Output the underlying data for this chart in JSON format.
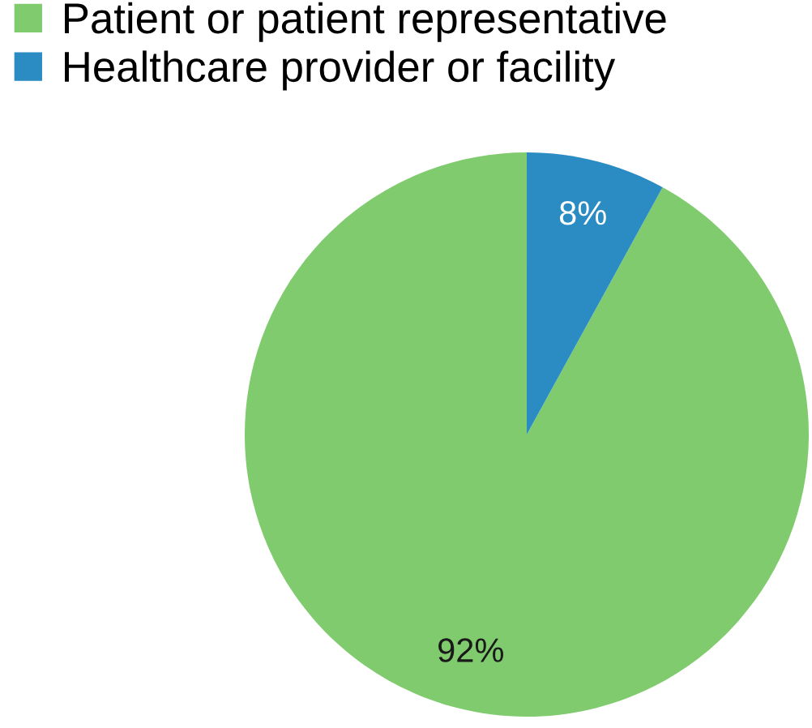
{
  "chart_data": {
    "type": "pie",
    "categories": [
      "Patient or patient representative",
      "Healthcare provider or facility"
    ],
    "values": [
      92,
      8
    ],
    "colors": [
      "#7fcb6e",
      "#2a8cc2"
    ],
    "value_labels": [
      "92%",
      "8%"
    ],
    "legend": "top left"
  }
}
